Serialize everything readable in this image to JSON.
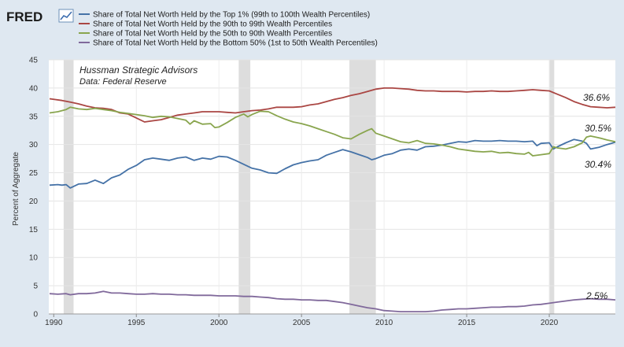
{
  "chart_data": {
    "type": "line",
    "brand": "FRED",
    "annotation": {
      "title": "Hussman Strategic Advisors",
      "subtitle": "Data: Federal Reserve"
    },
    "ylabel": "Percent of Aggregate",
    "xlabel": "",
    "xlim": [
      1989.7,
      2024.0
    ],
    "ylim": [
      0,
      45
    ],
    "x_ticks": [
      1990,
      1995,
      2000,
      2005,
      2010,
      2015,
      2020
    ],
    "y_ticks": [
      0,
      5,
      10,
      15,
      20,
      25,
      30,
      35,
      40,
      45
    ],
    "grid": true,
    "legend_position": "top",
    "recessions": [
      [
        1990.6,
        1991.2
      ],
      [
        2001.2,
        2001.9
      ],
      [
        2007.9,
        2009.5
      ],
      [
        2020.0,
        2020.3
      ]
    ],
    "series": [
      {
        "name": "Share of Total Net Worth Held by the Top 1% (99th to 100th Wealth Percentiles)",
        "color": "#4572a7",
        "end_label": "30.4%",
        "points": [
          [
            1989.75,
            22.8
          ],
          [
            1990.25,
            22.9
          ],
          [
            1990.5,
            22.8
          ],
          [
            1990.75,
            22.9
          ],
          [
            1991.0,
            22.3
          ],
          [
            1991.5,
            23.0
          ],
          [
            1992.0,
            23.1
          ],
          [
            1992.5,
            23.7
          ],
          [
            1993.0,
            23.1
          ],
          [
            1993.5,
            24.1
          ],
          [
            1994.0,
            24.6
          ],
          [
            1994.5,
            25.6
          ],
          [
            1995.0,
            26.3
          ],
          [
            1995.5,
            27.3
          ],
          [
            1996.0,
            27.6
          ],
          [
            1996.5,
            27.4
          ],
          [
            1997.0,
            27.2
          ],
          [
            1997.5,
            27.6
          ],
          [
            1998.0,
            27.8
          ],
          [
            1998.5,
            27.2
          ],
          [
            1999.0,
            27.6
          ],
          [
            1999.5,
            27.4
          ],
          [
            2000.0,
            27.9
          ],
          [
            2000.5,
            27.8
          ],
          [
            2001.0,
            27.2
          ],
          [
            2001.5,
            26.5
          ],
          [
            2002.0,
            25.8
          ],
          [
            2002.5,
            25.5
          ],
          [
            2003.0,
            25.0
          ],
          [
            2003.5,
            24.9
          ],
          [
            2004.0,
            25.7
          ],
          [
            2004.5,
            26.4
          ],
          [
            2005.0,
            26.8
          ],
          [
            2005.5,
            27.1
          ],
          [
            2006.0,
            27.3
          ],
          [
            2006.5,
            28.1
          ],
          [
            2007.0,
            28.6
          ],
          [
            2007.5,
            29.1
          ],
          [
            2008.0,
            28.7
          ],
          [
            2008.5,
            28.2
          ],
          [
            2009.0,
            27.7
          ],
          [
            2009.25,
            27.3
          ],
          [
            2009.5,
            27.5
          ],
          [
            2010.0,
            28.1
          ],
          [
            2010.5,
            28.4
          ],
          [
            2011.0,
            29.0
          ],
          [
            2011.5,
            29.2
          ],
          [
            2012.0,
            29.0
          ],
          [
            2012.5,
            29.6
          ],
          [
            2013.0,
            29.7
          ],
          [
            2013.5,
            29.9
          ],
          [
            2014.0,
            30.2
          ],
          [
            2014.5,
            30.5
          ],
          [
            2015.0,
            30.4
          ],
          [
            2015.5,
            30.7
          ],
          [
            2016.0,
            30.6
          ],
          [
            2016.5,
            30.6
          ],
          [
            2017.0,
            30.7
          ],
          [
            2017.5,
            30.6
          ],
          [
            2018.0,
            30.6
          ],
          [
            2018.5,
            30.5
          ],
          [
            2019.0,
            30.6
          ],
          [
            2019.25,
            29.8
          ],
          [
            2019.5,
            30.2
          ],
          [
            2020.0,
            30.3
          ],
          [
            2020.25,
            29.2
          ],
          [
            2020.5,
            29.6
          ],
          [
            2021.0,
            30.3
          ],
          [
            2021.5,
            30.9
          ],
          [
            2022.0,
            30.6
          ],
          [
            2022.25,
            30.2
          ],
          [
            2022.5,
            29.2
          ],
          [
            2023.0,
            29.5
          ],
          [
            2023.5,
            30.0
          ],
          [
            2024.0,
            30.4
          ]
        ]
      },
      {
        "name": "Share of Total Net Worth Held by the 90th to 99th Wealth Percentiles",
        "color": "#aa4643",
        "end_label": "36.6%",
        "points": [
          [
            1989.75,
            38.1
          ],
          [
            1990.5,
            37.8
          ],
          [
            1991.0,
            37.5
          ],
          [
            1991.5,
            37.2
          ],
          [
            1992.0,
            36.8
          ],
          [
            1992.5,
            36.5
          ],
          [
            1993.0,
            36.4
          ],
          [
            1993.5,
            36.2
          ],
          [
            1994.0,
            35.6
          ],
          [
            1994.5,
            35.4
          ],
          [
            1995.0,
            34.7
          ],
          [
            1995.5,
            34.0
          ],
          [
            1996.0,
            34.2
          ],
          [
            1996.5,
            34.4
          ],
          [
            1997.0,
            34.8
          ],
          [
            1997.5,
            35.2
          ],
          [
            1998.0,
            35.4
          ],
          [
            1998.5,
            35.6
          ],
          [
            1999.0,
            35.8
          ],
          [
            1999.5,
            35.8
          ],
          [
            2000.0,
            35.8
          ],
          [
            2000.5,
            35.7
          ],
          [
            2001.0,
            35.6
          ],
          [
            2001.5,
            35.8
          ],
          [
            2002.0,
            36.0
          ],
          [
            2002.5,
            36.1
          ],
          [
            2003.0,
            36.3
          ],
          [
            2003.5,
            36.6
          ],
          [
            2004.0,
            36.6
          ],
          [
            2004.5,
            36.6
          ],
          [
            2005.0,
            36.7
          ],
          [
            2005.5,
            37.0
          ],
          [
            2006.0,
            37.2
          ],
          [
            2006.5,
            37.6
          ],
          [
            2007.0,
            38.0
          ],
          [
            2007.5,
            38.3
          ],
          [
            2008.0,
            38.7
          ],
          [
            2008.5,
            39.0
          ],
          [
            2009.0,
            39.4
          ],
          [
            2009.5,
            39.8
          ],
          [
            2010.0,
            40.0
          ],
          [
            2010.5,
            40.0
          ],
          [
            2011.0,
            39.9
          ],
          [
            2011.5,
            39.8
          ],
          [
            2012.0,
            39.6
          ],
          [
            2012.5,
            39.5
          ],
          [
            2013.0,
            39.5
          ],
          [
            2013.5,
            39.4
          ],
          [
            2014.0,
            39.4
          ],
          [
            2014.5,
            39.4
          ],
          [
            2015.0,
            39.3
          ],
          [
            2015.5,
            39.4
          ],
          [
            2016.0,
            39.4
          ],
          [
            2016.5,
            39.5
          ],
          [
            2017.0,
            39.4
          ],
          [
            2017.5,
            39.4
          ],
          [
            2018.0,
            39.5
          ],
          [
            2018.5,
            39.6
          ],
          [
            2019.0,
            39.7
          ],
          [
            2019.5,
            39.6
          ],
          [
            2020.0,
            39.5
          ],
          [
            2020.5,
            38.9
          ],
          [
            2021.0,
            38.3
          ],
          [
            2021.5,
            37.6
          ],
          [
            2022.0,
            37.1
          ],
          [
            2022.5,
            36.7
          ],
          [
            2023.0,
            36.6
          ],
          [
            2023.5,
            36.5
          ],
          [
            2024.0,
            36.6
          ]
        ]
      },
      {
        "name": "Share of Total Net Worth Held by the 50th to 90th Wealth Percentiles",
        "color": "#89a54e",
        "end_label": "30.5%",
        "points": [
          [
            1989.75,
            35.6
          ],
          [
            1990.25,
            35.8
          ],
          [
            1990.75,
            36.2
          ],
          [
            1991.0,
            36.6
          ],
          [
            1991.5,
            36.3
          ],
          [
            1992.0,
            36.2
          ],
          [
            1992.5,
            36.4
          ],
          [
            1993.0,
            36.2
          ],
          [
            1993.5,
            36.0
          ],
          [
            1994.0,
            35.7
          ],
          [
            1994.5,
            35.5
          ],
          [
            1995.0,
            35.3
          ],
          [
            1995.5,
            35.1
          ],
          [
            1996.0,
            34.8
          ],
          [
            1996.5,
            35.0
          ],
          [
            1997.0,
            34.9
          ],
          [
            1997.5,
            34.6
          ],
          [
            1998.0,
            34.3
          ],
          [
            1998.25,
            33.6
          ],
          [
            1998.5,
            34.2
          ],
          [
            1999.0,
            33.6
          ],
          [
            1999.5,
            33.7
          ],
          [
            1999.75,
            33.0
          ],
          [
            2000.0,
            33.1
          ],
          [
            2000.5,
            33.9
          ],
          [
            2001.0,
            34.8
          ],
          [
            2001.5,
            35.4
          ],
          [
            2001.75,
            34.9
          ],
          [
            2002.0,
            35.3
          ],
          [
            2002.5,
            35.9
          ],
          [
            2003.0,
            35.8
          ],
          [
            2003.5,
            35.1
          ],
          [
            2004.0,
            34.5
          ],
          [
            2004.5,
            34.0
          ],
          [
            2005.0,
            33.7
          ],
          [
            2005.5,
            33.3
          ],
          [
            2006.0,
            32.8
          ],
          [
            2006.5,
            32.3
          ],
          [
            2007.0,
            31.8
          ],
          [
            2007.5,
            31.2
          ],
          [
            2008.0,
            31.0
          ],
          [
            2008.5,
            31.8
          ],
          [
            2009.0,
            32.5
          ],
          [
            2009.25,
            32.8
          ],
          [
            2009.5,
            32.0
          ],
          [
            2010.0,
            31.5
          ],
          [
            2010.5,
            31.0
          ],
          [
            2011.0,
            30.5
          ],
          [
            2011.5,
            30.3
          ],
          [
            2012.0,
            30.7
          ],
          [
            2012.5,
            30.2
          ],
          [
            2013.0,
            30.1
          ],
          [
            2013.5,
            29.9
          ],
          [
            2014.0,
            29.6
          ],
          [
            2014.5,
            29.2
          ],
          [
            2015.0,
            29.0
          ],
          [
            2015.5,
            28.8
          ],
          [
            2016.0,
            28.7
          ],
          [
            2016.5,
            28.8
          ],
          [
            2017.0,
            28.5
          ],
          [
            2017.5,
            28.6
          ],
          [
            2018.0,
            28.4
          ],
          [
            2018.5,
            28.3
          ],
          [
            2018.75,
            28.6
          ],
          [
            2019.0,
            28.0
          ],
          [
            2019.5,
            28.2
          ],
          [
            2020.0,
            28.4
          ],
          [
            2020.25,
            29.6
          ],
          [
            2020.5,
            29.4
          ],
          [
            2021.0,
            29.2
          ],
          [
            2021.5,
            29.6
          ],
          [
            2022.0,
            30.3
          ],
          [
            2022.25,
            31.3
          ],
          [
            2022.5,
            31.5
          ],
          [
            2023.0,
            31.2
          ],
          [
            2023.5,
            30.8
          ],
          [
            2024.0,
            30.5
          ]
        ]
      },
      {
        "name": "Share of Total Net Worth Held by the Bottom 50% (1st to 50th Wealth Percentiles)",
        "color": "#80699b",
        "end_label": "2.5%",
        "points": [
          [
            1989.75,
            3.6
          ],
          [
            1990.25,
            3.5
          ],
          [
            1990.75,
            3.6
          ],
          [
            1991.0,
            3.4
          ],
          [
            1991.5,
            3.6
          ],
          [
            1992.0,
            3.6
          ],
          [
            1992.5,
            3.7
          ],
          [
            1993.0,
            4.0
          ],
          [
            1993.5,
            3.7
          ],
          [
            1994.0,
            3.7
          ],
          [
            1994.5,
            3.6
          ],
          [
            1995.0,
            3.5
          ],
          [
            1995.5,
            3.5
          ],
          [
            1996.0,
            3.6
          ],
          [
            1996.5,
            3.5
          ],
          [
            1997.0,
            3.5
          ],
          [
            1997.5,
            3.4
          ],
          [
            1998.0,
            3.4
          ],
          [
            1998.5,
            3.3
          ],
          [
            1999.0,
            3.3
          ],
          [
            1999.5,
            3.3
          ],
          [
            2000.0,
            3.2
          ],
          [
            2000.5,
            3.2
          ],
          [
            2001.0,
            3.2
          ],
          [
            2001.5,
            3.1
          ],
          [
            2002.0,
            3.1
          ],
          [
            2002.5,
            3.0
          ],
          [
            2003.0,
            2.9
          ],
          [
            2003.5,
            2.7
          ],
          [
            2004.0,
            2.6
          ],
          [
            2004.5,
            2.6
          ],
          [
            2005.0,
            2.5
          ],
          [
            2005.5,
            2.5
          ],
          [
            2006.0,
            2.4
          ],
          [
            2006.5,
            2.4
          ],
          [
            2007.0,
            2.2
          ],
          [
            2007.5,
            2.0
          ],
          [
            2008.0,
            1.7
          ],
          [
            2008.5,
            1.4
          ],
          [
            2009.0,
            1.1
          ],
          [
            2009.5,
            0.9
          ],
          [
            2010.0,
            0.6
          ],
          [
            2010.5,
            0.5
          ],
          [
            2011.0,
            0.4
          ],
          [
            2011.5,
            0.4
          ],
          [
            2012.0,
            0.4
          ],
          [
            2012.5,
            0.4
          ],
          [
            2013.0,
            0.5
          ],
          [
            2013.5,
            0.7
          ],
          [
            2014.0,
            0.8
          ],
          [
            2014.5,
            0.9
          ],
          [
            2015.0,
            0.9
          ],
          [
            2015.5,
            1.0
          ],
          [
            2016.0,
            1.1
          ],
          [
            2016.5,
            1.2
          ],
          [
            2017.0,
            1.2
          ],
          [
            2017.5,
            1.3
          ],
          [
            2018.0,
            1.3
          ],
          [
            2018.5,
            1.4
          ],
          [
            2019.0,
            1.6
          ],
          [
            2019.5,
            1.7
          ],
          [
            2020.0,
            1.9
          ],
          [
            2020.5,
            2.1
          ],
          [
            2021.0,
            2.3
          ],
          [
            2021.5,
            2.5
          ],
          [
            2022.0,
            2.6
          ],
          [
            2022.5,
            2.7
          ],
          [
            2023.0,
            2.6
          ],
          [
            2023.5,
            2.6
          ],
          [
            2024.0,
            2.5
          ]
        ]
      }
    ]
  }
}
